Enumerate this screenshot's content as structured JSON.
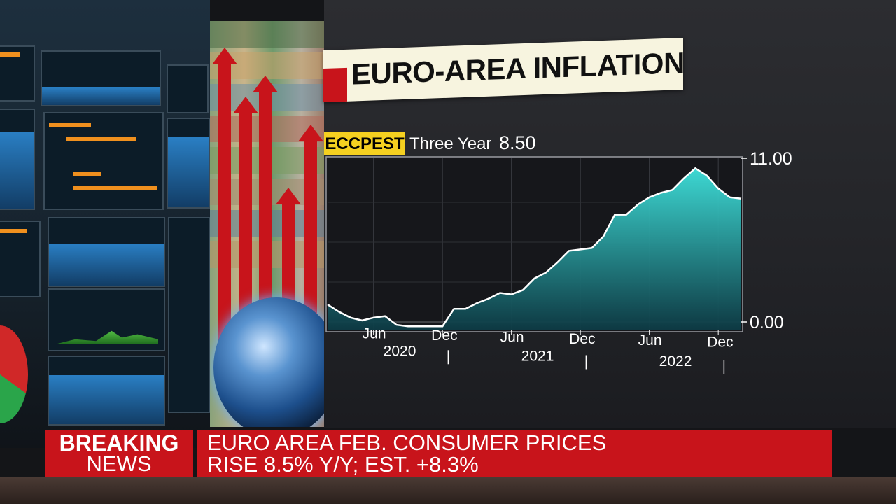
{
  "title": "EURO-AREA INFLATION",
  "ticker": {
    "symbol": "ECCPEST",
    "description": "Three Year",
    "last_value": "8.50"
  },
  "chart_data": {
    "type": "area",
    "x_start_month": "2020-02",
    "x_end_month": "2023-02",
    "ylim": [
      0,
      11
    ],
    "y_ticks": [
      "11.00",
      "0.00"
    ],
    "x_tick_labels": [
      {
        "label": "Jun",
        "year": "2020",
        "month_index": 4
      },
      {
        "label": "Dec",
        "year": "",
        "month_index": 10
      },
      {
        "label": "Jun",
        "year": "2021",
        "month_index": 16
      },
      {
        "label": "Dec",
        "year": "",
        "month_index": 22
      },
      {
        "label": "Jun",
        "year": "2022",
        "month_index": 28
      },
      {
        "label": "Dec",
        "year": "",
        "month_index": 34
      }
    ],
    "year_dividers": [
      10.5,
      22.5,
      34.5
    ],
    "values": [
      1.2,
      0.7,
      0.3,
      0.1,
      0.3,
      0.4,
      -0.2,
      -0.3,
      -0.3,
      -0.3,
      -0.3,
      0.9,
      0.9,
      1.3,
      1.6,
      2.0,
      1.9,
      2.2,
      3.0,
      3.4,
      4.1,
      4.9,
      5.0,
      5.1,
      5.9,
      7.4,
      7.4,
      8.1,
      8.6,
      8.9,
      9.1,
      9.9,
      10.6,
      10.1,
      9.2,
      8.6,
      8.5
    ],
    "grid": true,
    "fill_color": "#2fd3cf",
    "line_color": "#ffffff"
  },
  "breaking": {
    "label_top": "BREAKING",
    "label_bottom": "NEWS"
  },
  "headline": {
    "line1": "EURO AREA FEB. CONSUMER PRICES",
    "line2": "RISE 8.5% Y/Y; EST. +8.3%"
  }
}
